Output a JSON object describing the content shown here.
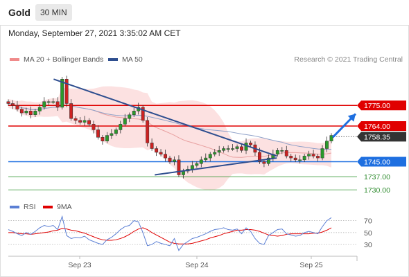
{
  "header": {
    "title": "Gold",
    "timeframe": "30 MIN"
  },
  "datetime": "Monday, September 27, 2021 3:35:02 AM CET",
  "legend": {
    "ma20_label": "MA 20 + Bollinger Bands",
    "ma20_color": "#f08a8a",
    "ma50_label": "MA 50",
    "ma50_color": "#2e4e8f",
    "research": "Research © 2021 Trading Central"
  },
  "rsi_legend": {
    "rsi_label": "RSI",
    "rsi_color": "#5b7fd4",
    "ma9_label": "9MA",
    "ma9_color": "#e00000"
  },
  "chart_data": {
    "type": "candlestick",
    "x_ticks": [
      "Sep 23",
      "Sep 24",
      "Sep 25"
    ],
    "y_range": [
      1726,
      1795
    ],
    "current_price": "1758.35",
    "levels": [
      {
        "label": "1775.00",
        "value": 1775,
        "kind": "resistance",
        "color": "#e00000"
      },
      {
        "label": "1764.00",
        "value": 1764,
        "kind": "resistance",
        "color": "#e00000"
      },
      {
        "label": "1745.00",
        "value": 1745,
        "kind": "pivot",
        "color": "#1e6fe0"
      },
      {
        "label": "1737.00",
        "value": 1737,
        "kind": "support",
        "color": "#3a9a3a"
      },
      {
        "label": "1730.00",
        "value": 1730,
        "kind": "support",
        "color": "#3a9a3a"
      }
    ],
    "close_series": [
      1776,
      1775,
      1773,
      1771,
      1772,
      1770,
      1772,
      1774,
      1777,
      1777,
      1777,
      1774,
      1789,
      1776,
      1768,
      1767,
      1766,
      1767,
      1765,
      1762,
      1758,
      1756,
      1759,
      1760,
      1762,
      1765,
      1768,
      1770,
      1772,
      1774,
      1767,
      1755,
      1752,
      1750,
      1749,
      1747,
      1745,
      1746,
      1738,
      1740,
      1741,
      1743,
      1744,
      1746,
      1747,
      1749,
      1750,
      1751,
      1752,
      1752,
      1752,
      1753,
      1751,
      1755,
      1754,
      1750,
      1745,
      1744,
      1747,
      1749,
      1751,
      1751,
      1748,
      1747,
      1746,
      1746,
      1748,
      1749,
      1748,
      1747,
      1752,
      1756,
      1759
    ],
    "rsi": {
      "y_ticks": [
        70,
        50,
        30
      ],
      "y_range": [
        15,
        80
      ],
      "rsi_values": [
        55,
        52,
        48,
        45,
        50,
        47,
        52,
        58,
        62,
        60,
        62,
        55,
        77,
        45,
        40,
        42,
        41,
        44,
        38,
        35,
        32,
        30,
        38,
        42,
        48,
        55,
        60,
        62,
        70,
        68,
        50,
        28,
        30,
        35,
        32,
        30,
        28,
        40,
        20,
        30,
        35,
        40,
        42,
        45,
        48,
        52,
        55,
        56,
        58,
        55,
        54,
        56,
        48,
        58,
        52,
        40,
        32,
        30,
        45,
        50,
        55,
        56,
        48,
        46,
        44,
        45,
        50,
        52,
        50,
        48,
        60,
        70,
        75
      ],
      "ma9_values": [
        50,
        50,
        49,
        48,
        48,
        47,
        48,
        49,
        50,
        51,
        53,
        54,
        57,
        56,
        54,
        53,
        51,
        49,
        46,
        43,
        40,
        38,
        37,
        37,
        38,
        40,
        43,
        47,
        52,
        56,
        58,
        55,
        50,
        46,
        42,
        38,
        34,
        32,
        31,
        31,
        31,
        32,
        34,
        36,
        38,
        41,
        43,
        45,
        48,
        50,
        52,
        54,
        54,
        55,
        55,
        54,
        52,
        49,
        46,
        45,
        44,
        45,
        47,
        48,
        48,
        48,
        48,
        48,
        49,
        49,
        51,
        54,
        58
      ]
    },
    "trendlines": [
      {
        "name": "descending",
        "from": [
          0.13,
          1789
        ],
        "to": [
          0.77,
          1748
        ]
      },
      {
        "name": "ascending",
        "from": [
          0.42,
          1738
        ],
        "to": [
          0.77,
          1747
        ]
      }
    ]
  }
}
